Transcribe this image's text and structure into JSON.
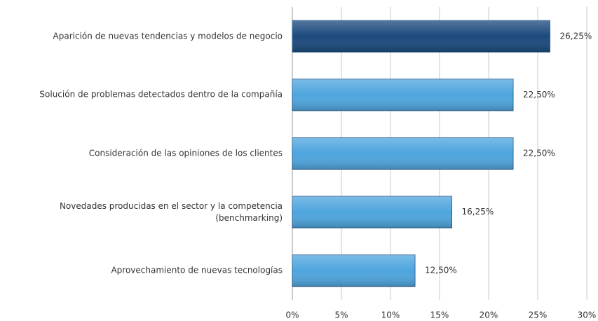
{
  "chart_data": {
    "type": "bar",
    "orientation": "horizontal",
    "categories": [
      "Aparición de nuevas tendencias y modelos de negocio",
      "Solución de problemas detectados dentro de la compañía",
      "Consideración de las opiniones de los clientes",
      "Novedades producidas en el sector y la competencia (benchmarking)",
      "Aprovechamiento de nuevas tecnologías"
    ],
    "values": [
      26.25,
      22.5,
      22.5,
      16.25,
      12.5
    ],
    "value_labels": [
      "26,25%",
      "22,50%",
      "22,50%",
      "16,25%",
      "12,50%"
    ],
    "colors": [
      "#1b4a7d",
      "#4ea5de",
      "#4ea5de",
      "#4ea5de",
      "#4ea5de"
    ],
    "xlim": [
      0,
      30
    ],
    "xticks": [
      {
        "value": 0,
        "label": "0%"
      },
      {
        "value": 5,
        "label": "5%"
      },
      {
        "value": 10,
        "label": "10%"
      },
      {
        "value": 15,
        "label": "15%"
      },
      {
        "value": 20,
        "label": "20%"
      },
      {
        "value": 25,
        "label": "25%"
      },
      {
        "value": 30,
        "label": "30%"
      }
    ],
    "grid": true
  }
}
